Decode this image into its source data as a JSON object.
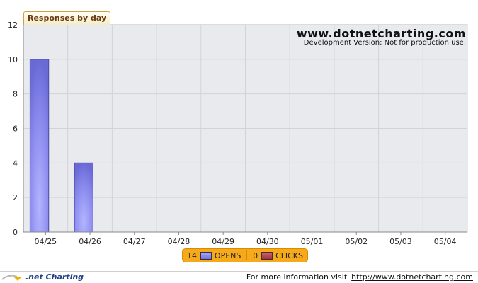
{
  "chart_data": {
    "type": "bar",
    "title": "Responses by day",
    "categories": [
      "04/25",
      "04/26",
      "04/27",
      "04/28",
      "04/29",
      "04/30",
      "05/01",
      "05/02",
      "05/03",
      "05/04"
    ],
    "series": [
      {
        "name": "OPENS",
        "values": [
          10,
          4,
          0,
          0,
          0,
          0,
          0,
          0,
          0,
          0
        ],
        "color": "#8080e8"
      },
      {
        "name": "CLICKS",
        "values": [
          0,
          0,
          0,
          0,
          0,
          0,
          0,
          0,
          0,
          0
        ],
        "color": "#b5404f"
      }
    ],
    "ylim": [
      0,
      12
    ],
    "yticks": [
      "0",
      "2",
      "4",
      "6",
      "8",
      "10",
      "12"
    ],
    "grid": true,
    "legend_position": "bottom-center"
  },
  "watermark": {
    "main": "www.dotnetcharting.com",
    "sub": "Development Version: Not for production use."
  },
  "legend": {
    "opens_count": "14",
    "opens_label": "OPENS",
    "clicks_count": "0",
    "clicks_label": "CLICKS"
  },
  "footer": {
    "logo_text": ".net Charting",
    "info_text": "For more information visit",
    "link_text": "http://www.dotnetcharting.com"
  },
  "colors": {
    "plot_bg": "#e8eaed",
    "grid": "#d2d3d6",
    "legend_bg": "#f6a91a"
  }
}
